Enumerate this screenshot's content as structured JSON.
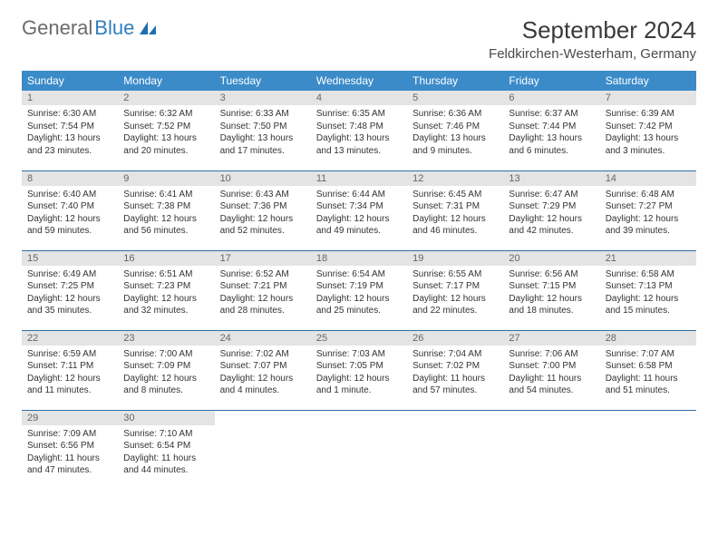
{
  "brand": {
    "part1": "General",
    "part2": "Blue"
  },
  "title": "September 2024",
  "location": "Feldkirchen-Westerham, Germany",
  "colors": {
    "header_bg": "#3b8bc9",
    "header_text": "#ffffff",
    "daynum_bg": "#e4e4e4",
    "row_divider": "#2f6fa8",
    "brand_gray": "#6b6b6b",
    "brand_blue": "#2f7fbf"
  },
  "weekdays": [
    "Sunday",
    "Monday",
    "Tuesday",
    "Wednesday",
    "Thursday",
    "Friday",
    "Saturday"
  ],
  "days": [
    {
      "n": "1",
      "sr": "6:30 AM",
      "ss": "7:54 PM",
      "dl": "13 hours and 23 minutes."
    },
    {
      "n": "2",
      "sr": "6:32 AM",
      "ss": "7:52 PM",
      "dl": "13 hours and 20 minutes."
    },
    {
      "n": "3",
      "sr": "6:33 AM",
      "ss": "7:50 PM",
      "dl": "13 hours and 17 minutes."
    },
    {
      "n": "4",
      "sr": "6:35 AM",
      "ss": "7:48 PM",
      "dl": "13 hours and 13 minutes."
    },
    {
      "n": "5",
      "sr": "6:36 AM",
      "ss": "7:46 PM",
      "dl": "13 hours and 9 minutes."
    },
    {
      "n": "6",
      "sr": "6:37 AM",
      "ss": "7:44 PM",
      "dl": "13 hours and 6 minutes."
    },
    {
      "n": "7",
      "sr": "6:39 AM",
      "ss": "7:42 PM",
      "dl": "13 hours and 3 minutes."
    },
    {
      "n": "8",
      "sr": "6:40 AM",
      "ss": "7:40 PM",
      "dl": "12 hours and 59 minutes."
    },
    {
      "n": "9",
      "sr": "6:41 AM",
      "ss": "7:38 PM",
      "dl": "12 hours and 56 minutes."
    },
    {
      "n": "10",
      "sr": "6:43 AM",
      "ss": "7:36 PM",
      "dl": "12 hours and 52 minutes."
    },
    {
      "n": "11",
      "sr": "6:44 AM",
      "ss": "7:34 PM",
      "dl": "12 hours and 49 minutes."
    },
    {
      "n": "12",
      "sr": "6:45 AM",
      "ss": "7:31 PM",
      "dl": "12 hours and 46 minutes."
    },
    {
      "n": "13",
      "sr": "6:47 AM",
      "ss": "7:29 PM",
      "dl": "12 hours and 42 minutes."
    },
    {
      "n": "14",
      "sr": "6:48 AM",
      "ss": "7:27 PM",
      "dl": "12 hours and 39 minutes."
    },
    {
      "n": "15",
      "sr": "6:49 AM",
      "ss": "7:25 PM",
      "dl": "12 hours and 35 minutes."
    },
    {
      "n": "16",
      "sr": "6:51 AM",
      "ss": "7:23 PM",
      "dl": "12 hours and 32 minutes."
    },
    {
      "n": "17",
      "sr": "6:52 AM",
      "ss": "7:21 PM",
      "dl": "12 hours and 28 minutes."
    },
    {
      "n": "18",
      "sr": "6:54 AM",
      "ss": "7:19 PM",
      "dl": "12 hours and 25 minutes."
    },
    {
      "n": "19",
      "sr": "6:55 AM",
      "ss": "7:17 PM",
      "dl": "12 hours and 22 minutes."
    },
    {
      "n": "20",
      "sr": "6:56 AM",
      "ss": "7:15 PM",
      "dl": "12 hours and 18 minutes."
    },
    {
      "n": "21",
      "sr": "6:58 AM",
      "ss": "7:13 PM",
      "dl": "12 hours and 15 minutes."
    },
    {
      "n": "22",
      "sr": "6:59 AM",
      "ss": "7:11 PM",
      "dl": "12 hours and 11 minutes."
    },
    {
      "n": "23",
      "sr": "7:00 AM",
      "ss": "7:09 PM",
      "dl": "12 hours and 8 minutes."
    },
    {
      "n": "24",
      "sr": "7:02 AM",
      "ss": "7:07 PM",
      "dl": "12 hours and 4 minutes."
    },
    {
      "n": "25",
      "sr": "7:03 AM",
      "ss": "7:05 PM",
      "dl": "12 hours and 1 minute."
    },
    {
      "n": "26",
      "sr": "7:04 AM",
      "ss": "7:02 PM",
      "dl": "11 hours and 57 minutes."
    },
    {
      "n": "27",
      "sr": "7:06 AM",
      "ss": "7:00 PM",
      "dl": "11 hours and 54 minutes."
    },
    {
      "n": "28",
      "sr": "7:07 AM",
      "ss": "6:58 PM",
      "dl": "11 hours and 51 minutes."
    },
    {
      "n": "29",
      "sr": "7:09 AM",
      "ss": "6:56 PM",
      "dl": "11 hours and 47 minutes."
    },
    {
      "n": "30",
      "sr": "7:10 AM",
      "ss": "6:54 PM",
      "dl": "11 hours and 44 minutes."
    }
  ],
  "labels": {
    "sunrise": "Sunrise:",
    "sunset": "Sunset:",
    "daylight": "Daylight:"
  },
  "layout": {
    "start_weekday": 0,
    "total_cells": 35,
    "cols": 7
  }
}
